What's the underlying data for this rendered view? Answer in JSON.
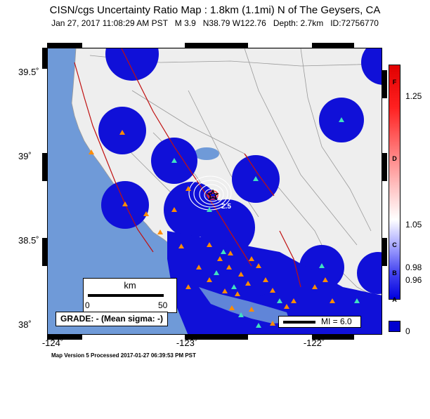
{
  "title": "CISN/cgs Uncertainty Ratio Map : 1.8km (1.1mi) N of The Geysers, CA",
  "subtitle": "Jan 27, 2017 11:08:29 AM PST   M 3.9   N38.79 W122.76   Depth: 2.7km   ID:72756770",
  "latitude_labels": [
    "39.5˚",
    "39˚",
    "38.5˚",
    "38˚"
  ],
  "longitude_labels": [
    "-124˚",
    "-123˚",
    "-122˚"
  ],
  "scale": {
    "title": "km",
    "min": "0",
    "max": "50"
  },
  "grade_text": "GRADE: - (Mean sigma: -)",
  "mi_label": "MI = 6.0",
  "contour_labels": [
    "2.5"
  ],
  "colorbar": {
    "ticks": [
      "1.25",
      "1.05",
      "0.98",
      "0.96",
      "0"
    ],
    "letters": [
      "F",
      "D",
      "C",
      "B",
      "A"
    ]
  },
  "footer": "Map Version 5 Processed 2017-01-27 06:39:53 PM PST",
  "colors": {
    "land": "#eeeeee",
    "water": "#6f9ad8",
    "uncertainty": "#1010d8",
    "fault": "#c01010",
    "station_triangle": "#ff8c00",
    "seismic_triangle": "#40e0c0"
  },
  "icons": [
    "epicenter-star-icon",
    "station-triangle-icon"
  ]
}
